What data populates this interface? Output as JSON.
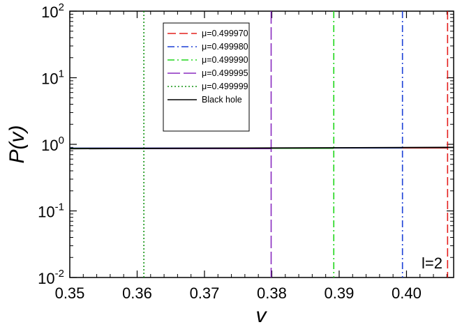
{
  "chart_data": {
    "type": "line",
    "xlabel": "v",
    "ylabel": "P(v)",
    "xlim": [
      0.35,
      0.407
    ],
    "ylim_log10": [
      -2,
      2
    ],
    "yscale": "log",
    "x_ticks": [
      "0.35",
      "0.36",
      "0.37",
      "0.38",
      "0.39",
      "0.40"
    ],
    "y_ticks": [
      {
        "base": "10",
        "exp": "2"
      },
      {
        "base": "10",
        "exp": "1"
      },
      {
        "base": "10",
        "exp": "0"
      },
      {
        "base": "10",
        "exp": "-1"
      },
      {
        "base": "10",
        "exp": "-2"
      }
    ],
    "legend_position": "top-left",
    "annotation": "l=2",
    "series": [
      {
        "name": "μ=0.499970",
        "color": "#e4201e",
        "dash": "dashed",
        "cutoff_v": 0.4061,
        "level": 0.88
      },
      {
        "name": "μ=0.499980",
        "color": "#1a3fd6",
        "dash": "dashdot",
        "cutoff_v": 0.3994,
        "level": 0.88
      },
      {
        "name": "μ=0.499990",
        "color": "#1fd61a",
        "dash": "dashdot",
        "cutoff_v": 0.3892,
        "level": 0.87
      },
      {
        "name": "μ=0.499995",
        "color": "#8a2bbf",
        "dash": "longdash",
        "cutoff_v": 0.3799,
        "level": 0.86
      },
      {
        "name": "μ=0.499999",
        "color": "#129312",
        "dash": "dotted",
        "cutoff_v": 0.361,
        "level": 0.86
      },
      {
        "name": "Black hole",
        "color": "#000000",
        "dash": "solid",
        "level_start": 0.86,
        "level_end": 0.9
      }
    ]
  }
}
